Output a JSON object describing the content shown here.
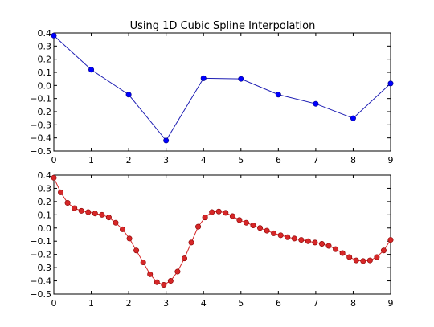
{
  "chart_data": [
    {
      "type": "line",
      "title": "Using 1D Cubic Spline Interpolation",
      "xlabel": "",
      "ylabel": "",
      "xlim": [
        0,
        9
      ],
      "ylim": [
        -0.5,
        0.4
      ],
      "x_ticks": [
        "0",
        "1",
        "2",
        "3",
        "4",
        "5",
        "6",
        "7",
        "8",
        "9"
      ],
      "y_ticks": [
        "0.4",
        "0.3",
        "0.2",
        "0.1",
        "0.0",
        "−0.1",
        "−0.2",
        "−0.3",
        "−0.4",
        "−0.5"
      ],
      "grid": false,
      "legend": "none",
      "color": "#1f1fb4",
      "marker_color": "#0000ff",
      "series": [
        {
          "x": [
            0,
            1,
            2,
            3,
            4,
            5,
            6,
            7,
            8,
            9
          ],
          "y": [
            0.38,
            0.12,
            -0.07,
            -0.42,
            0.055,
            0.05,
            -0.07,
            -0.14,
            -0.25,
            0.015
          ]
        }
      ]
    },
    {
      "type": "line",
      "title": "",
      "xlabel": "",
      "ylabel": "",
      "xlim": [
        0,
        9
      ],
      "ylim": [
        -0.5,
        0.4
      ],
      "x_ticks": [
        "0",
        "1",
        "2",
        "3",
        "4",
        "5",
        "6",
        "7",
        "8",
        "9"
      ],
      "y_ticks": [
        "0.4",
        "0.3",
        "0.2",
        "0.1",
        "0.0",
        "−0.1",
        "−0.2",
        "−0.3",
        "−0.4",
        "−0.5"
      ],
      "grid": false,
      "legend": "none",
      "color": "#d62728",
      "marker_color": "#d62728",
      "series": [
        {
          "x": [
            0,
            0.1837,
            0.3673,
            0.551,
            0.7347,
            0.9184,
            1.102,
            1.2857,
            1.4694,
            1.6531,
            1.8367,
            2.0204,
            2.2041,
            2.3878,
            2.5714,
            2.7551,
            2.9388,
            3.1224,
            3.3061,
            3.4898,
            3.6735,
            3.8571,
            4.0408,
            4.2245,
            4.4082,
            4.5918,
            4.7755,
            4.9592,
            5.1429,
            5.3265,
            5.5102,
            5.6939,
            5.8776,
            6.0612,
            6.2449,
            6.4286,
            6.6122,
            6.7959,
            6.9796,
            7.1633,
            7.3469,
            7.5306,
            7.7143,
            7.898,
            8.0816,
            8.2653,
            8.449,
            8.6327,
            8.8163,
            9
          ],
          "y": [
            0.38,
            0.27,
            0.19,
            0.15,
            0.13,
            0.12,
            0.11,
            0.1,
            0.08,
            0.04,
            -0.01,
            -0.08,
            -0.17,
            -0.26,
            -0.35,
            -0.41,
            -0.43,
            -0.4,
            -0.33,
            -0.23,
            -0.11,
            0.01,
            0.08,
            0.12,
            0.125,
            0.115,
            0.09,
            0.06,
            0.04,
            0.02,
            0.0,
            -0.02,
            -0.04,
            -0.055,
            -0.07,
            -0.08,
            -0.09,
            -0.1,
            -0.11,
            -0.12,
            -0.135,
            -0.16,
            -0.19,
            -0.22,
            -0.245,
            -0.25,
            -0.245,
            -0.22,
            -0.17,
            -0.09
          ]
        }
      ]
    }
  ]
}
